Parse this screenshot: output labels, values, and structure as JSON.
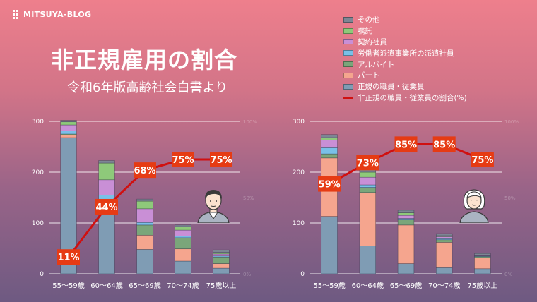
{
  "brand": {
    "name": "MITSUYA-BLOG"
  },
  "header": {
    "title": "非正規雇用の割合",
    "subtitle": "令和6年版高齢社会白書より"
  },
  "legend": {
    "items": [
      {
        "label": "その他",
        "color": "#7d8694"
      },
      {
        "label": "嘱託",
        "color": "#8ec97a"
      },
      {
        "label": "契約社員",
        "color": "#c98fd6"
      },
      {
        "label": "労働者派遣事業所の派遣社員",
        "color": "#79c0e8"
      },
      {
        "label": "アルバイト",
        "color": "#7aa67a"
      },
      {
        "label": "パート",
        "color": "#f5a58e"
      },
      {
        "label": "正規の職員・従業員",
        "color": "#7f9cb4"
      }
    ],
    "line_label": "非正規の職員・従業員の割合(%)",
    "line_color": "#d01010"
  },
  "chart_data": [
    {
      "type": "bar",
      "stacked": true,
      "categories": [
        "55～59歳",
        "60～64歳",
        "65～69歳",
        "70～74歳",
        "75歳以上"
      ],
      "yticks": [
        0,
        100,
        200,
        300
      ],
      "ylim": [
        0,
        300
      ],
      "right_ticks": [
        "100%",
        "50%",
        "0%"
      ],
      "series": [
        {
          "name": "正規の職員・従業員",
          "values": [
            268,
            135,
            48,
            25,
            11
          ],
          "color": "#7f9cb4"
        },
        {
          "name": "パート",
          "values": [
            5,
            5,
            28,
            24,
            9
          ],
          "color": "#f5a58e"
        },
        {
          "name": "アルバイト",
          "values": [
            2,
            5,
            20,
            22,
            13
          ],
          "color": "#7aa67a"
        },
        {
          "name": "労働者派遣事業所の派遣社員",
          "values": [
            6,
            10,
            5,
            3,
            2
          ],
          "color": "#79c0e8"
        },
        {
          "name": "契約社員",
          "values": [
            12,
            30,
            27,
            12,
            4
          ],
          "color": "#c98fd6"
        },
        {
          "name": "嘱託",
          "values": [
            6,
            33,
            15,
            7,
            3
          ],
          "color": "#8ec97a"
        },
        {
          "name": "その他",
          "values": [
            3,
            5,
            4,
            3,
            5
          ],
          "color": "#7d8694"
        }
      ],
      "line": {
        "name": "非正規の職員・従業員の割合(%)",
        "values": [
          11,
          44,
          68,
          75,
          75
        ],
        "labels": [
          "11%",
          "44%",
          "68%",
          "75%",
          "75%"
        ]
      }
    },
    {
      "type": "bar",
      "stacked": true,
      "categories": [
        "55～59歳",
        "60～64歳",
        "65～69歳",
        "70～74歳",
        "75歳以上"
      ],
      "yticks": [
        0,
        100,
        200,
        300
      ],
      "ylim": [
        0,
        300
      ],
      "right_ticks": [
        "100%",
        "50%",
        "0%"
      ],
      "series": [
        {
          "name": "正規の職員・従業員",
          "values": [
            113,
            55,
            20,
            12,
            10
          ],
          "color": "#7f9cb4"
        },
        {
          "name": "パート",
          "values": [
            115,
            105,
            76,
            50,
            22
          ],
          "color": "#f5a58e"
        },
        {
          "name": "アルバイト",
          "values": [
            8,
            10,
            10,
            5,
            2
          ],
          "color": "#7aa67a"
        },
        {
          "name": "労働者派遣事業所の派遣社員",
          "values": [
            12,
            5,
            3,
            2,
            1
          ],
          "color": "#79c0e8"
        },
        {
          "name": "契約社員",
          "values": [
            15,
            15,
            6,
            4,
            1
          ],
          "color": "#c98fd6"
        },
        {
          "name": "嘱託",
          "values": [
            5,
            10,
            5,
            2,
            1
          ],
          "color": "#8ec97a"
        },
        {
          "name": "その他",
          "values": [
            6,
            6,
            5,
            4,
            3
          ],
          "color": "#7d8694"
        }
      ],
      "line": {
        "name": "非正規の職員・従業員の割合(%)",
        "values": [
          59,
          73,
          85,
          85,
          75
        ],
        "labels": [
          "59%",
          "73%",
          "85%",
          "85%",
          "75%"
        ]
      }
    }
  ]
}
